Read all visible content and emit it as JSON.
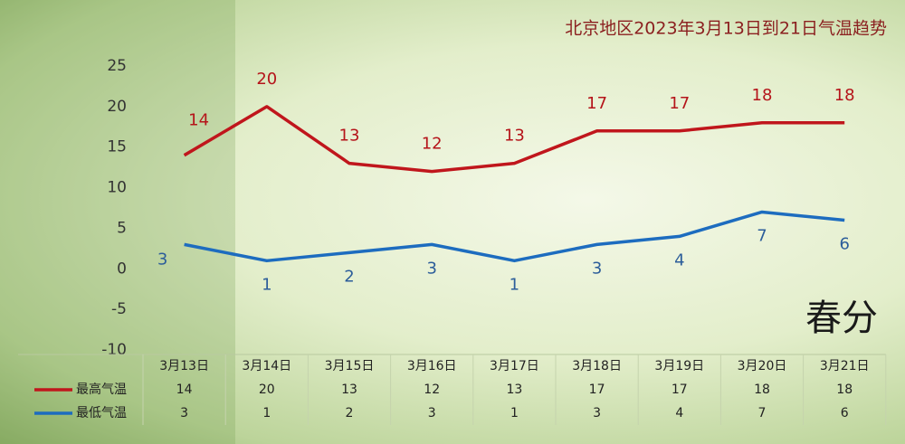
{
  "chart_data": {
    "type": "line",
    "title": "北京地区2023年3月13日到21日气温趋势",
    "decoration": "春分",
    "categories": [
      "3月13日",
      "3月14日",
      "3月15日",
      "3月16日",
      "3月17日",
      "3月18日",
      "3月19日",
      "3月20日",
      "3月21日"
    ],
    "series": [
      {
        "name": "最高气温",
        "color": "#c0161c",
        "values": [
          14,
          20,
          13,
          12,
          13,
          17,
          17,
          18,
          18
        ]
      },
      {
        "name": "最低气温",
        "color": "#1d6cbf",
        "values": [
          3,
          1,
          2,
          3,
          1,
          3,
          4,
          7,
          6
        ]
      }
    ],
    "ylim": [
      -10,
      25
    ],
    "yticks": [
      -10,
      -5,
      0,
      5,
      10,
      15,
      20,
      25
    ],
    "grid": false
  }
}
